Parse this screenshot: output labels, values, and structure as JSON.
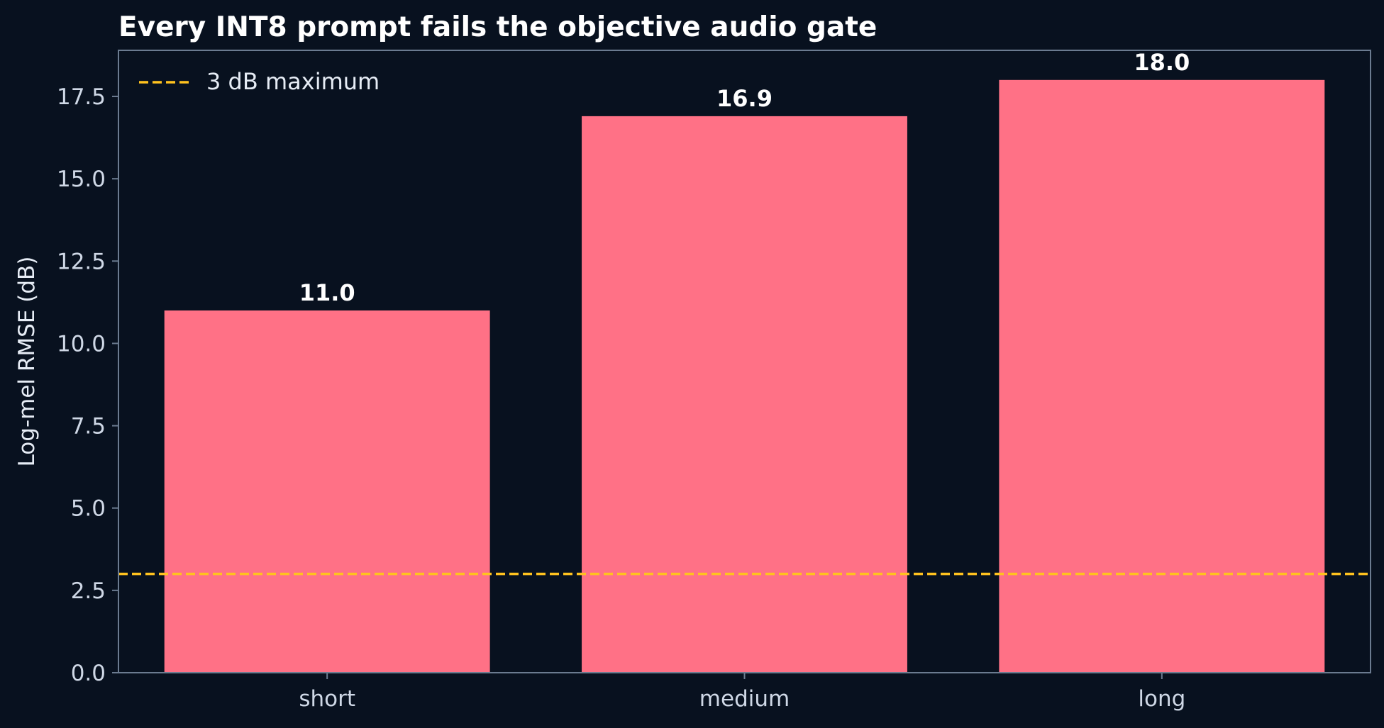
{
  "chart_data": {
    "type": "bar",
    "title": "Every INT8 prompt fails the objective audio gate",
    "xlabel": "",
    "ylabel": "Log-mel RMSE (dB)",
    "categories": [
      "short",
      "medium",
      "long"
    ],
    "values": [
      11.0,
      16.9,
      18.0
    ],
    "value_labels": [
      "11.0",
      "16.9",
      "18.0"
    ],
    "ylim": [
      0,
      18.9
    ],
    "yticks": [
      0.0,
      2.5,
      5.0,
      7.5,
      10.0,
      12.5,
      15.0,
      17.5
    ],
    "ytick_labels": [
      "0.0",
      "2.5",
      "5.0",
      "7.5",
      "10.0",
      "12.5",
      "15.0",
      "17.5"
    ],
    "threshold": {
      "value": 3.0,
      "label": "3 dB maximum",
      "style": "dashed"
    },
    "legend_position": "top-left",
    "grid": false,
    "colors": {
      "background": "#08111f",
      "bar": "#ff7186",
      "threshold": "#ffc21f",
      "axes": "#6b7b90",
      "text": "#ffffff",
      "tick_text": "#cfd8e6"
    }
  }
}
